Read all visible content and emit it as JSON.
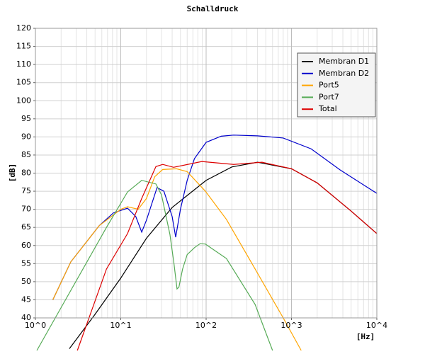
{
  "chart_data": {
    "type": "line",
    "title": "Schalldruck",
    "x_label": "[Hz]",
    "y_label": "[dB]",
    "x_scale": "log",
    "grid": true,
    "legend": "upper right",
    "xlim": [
      1,
      10000
    ],
    "xticks": [
      {
        "value": 1,
        "label": "10^0"
      },
      {
        "value": 10,
        "label": "10^1"
      },
      {
        "value": 100,
        "label": "10^2"
      },
      {
        "value": 1000,
        "label": "10^3"
      },
      {
        "value": 10000,
        "label": "10^4"
      }
    ],
    "ylim": [
      40,
      120
    ],
    "yticks": [
      40,
      45,
      50,
      55,
      60,
      65,
      70,
      75,
      80,
      85,
      90,
      95,
      100,
      105,
      110,
      115,
      120
    ],
    "series": [
      {
        "name": "Membran D1",
        "color": "#000000",
        "x": [
          2.5,
          5,
          10,
          20,
          40,
          100,
          200,
          400,
          1000,
          2000,
          5000,
          10000
        ],
        "values": [
          31.5,
          41,
          51,
          62,
          70.5,
          78,
          81.7,
          83,
          81.2,
          77.3,
          69.5,
          63.3
        ]
      },
      {
        "name": "Membran D2",
        "color": "#0000cc",
        "x": [
          1.6,
          2.6,
          5.6,
          8.2,
          12,
          15,
          17.6,
          20,
          26.6,
          32,
          40,
          44,
          50,
          60,
          73,
          100,
          150,
          210,
          400,
          800,
          1700,
          3700,
          10000
        ],
        "values": [
          45,
          55.5,
          65.5,
          69,
          70.3,
          68,
          63.7,
          67,
          76,
          75,
          68,
          62.3,
          70,
          78,
          84,
          88.5,
          90.2,
          90.5,
          90.3,
          89.7,
          86.7,
          80.9,
          74.4
        ]
      },
      {
        "name": "Port5",
        "color": "#ffa500",
        "x": [
          1.6,
          2.6,
          5.6,
          10,
          12,
          16,
          20,
          25,
          31,
          45,
          60,
          98,
          173,
          375,
          800,
          1300
        ],
        "values": [
          45,
          55.5,
          65.5,
          70,
          70.7,
          70,
          73,
          79,
          81,
          81.2,
          80.4,
          75,
          67.2,
          53.5,
          40,
          31
        ]
      },
      {
        "name": "Port7",
        "color": "#55aa55",
        "x": [
          1.04,
          2.6,
          6.8,
          12,
          17.6,
          25.8,
          30,
          37.7,
          42,
          45.6,
          48,
          53,
          60,
          73,
          85,
          98,
          173,
          375,
          600
        ],
        "values": [
          31,
          47.6,
          65,
          74.8,
          78,
          77,
          74,
          63,
          55,
          48,
          48.5,
          53.5,
          57.5,
          59.4,
          60.5,
          60.4,
          56.4,
          43.7,
          31
        ]
      },
      {
        "name": "Total",
        "color": "#dd0000",
        "x": [
          3.1,
          6.8,
          12,
          17.6,
          25.8,
          31,
          41.6,
          89,
          210,
          452,
          1000,
          2000,
          5000,
          10000
        ],
        "values": [
          31,
          53.5,
          63.3,
          73,
          81.8,
          82.4,
          81.6,
          83.2,
          82.4,
          83,
          81.2,
          77.3,
          69.5,
          63.3
        ]
      }
    ]
  }
}
